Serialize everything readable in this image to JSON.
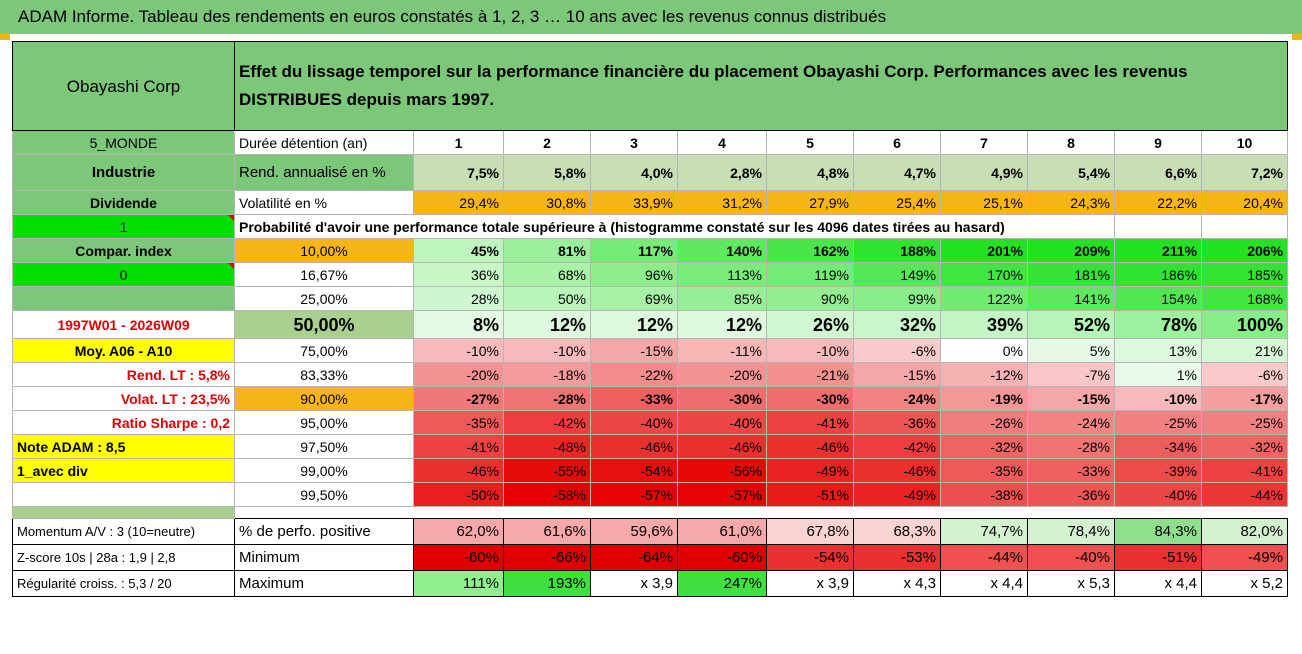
{
  "title": "ADAM Informe. Tableau des rendements en euros constatés à 1, 2, 3 … 10 ans avec les revenus connus distribués",
  "company": "Obayashi Corp",
  "header_text": "Effet du lissage temporel sur la performance financière du placement Obayashi Corp. Performances avec les revenus DISTRIBUES depuis mars 1997.",
  "left": {
    "zone": "5_MONDE",
    "sector": "Industrie",
    "dividend_label": "Dividende",
    "dividend_value": "1",
    "compar_index": "Compar. index",
    "compar_value": "0",
    "period": "1997W01 - 2026W09",
    "moy": "Moy. A06 - A10",
    "rend_lt": "Rend. LT :   5,8%",
    "volat_lt": "Volat. LT :   23,5%",
    "sharpe": "Ratio Sharpe :    0,2",
    "note": "Note ADAM : 8,5",
    "avec_div": "1_avec div",
    "momentum": "Momentum A/V : 3 (10=neutre)",
    "zscore": "Z-score 10s | 28a : 1,9 | 2,8",
    "regularite": "Régularité croiss. : 5,3 / 20"
  },
  "years": [
    "1",
    "2",
    "3",
    "4",
    "5",
    "6",
    "7",
    "8",
    "9",
    "10"
  ],
  "row_labels": {
    "duree": "Durée détention (an)",
    "rend": "Rend. annualisé en %",
    "vol": "Volatilité en %",
    "prob": "Probabilité d'avoir une performance totale supérieure à (histogramme constaté sur les 4096 dates tirées au hasard)",
    "pos": "% de perfo. positive",
    "min": "Minimum",
    "max": "Maximum"
  },
  "rend": [
    "7,5%",
    "5,8%",
    "4,0%",
    "2,8%",
    "4,8%",
    "4,7%",
    "4,9%",
    "5,4%",
    "6,6%",
    "7,2%"
  ],
  "vol": [
    "29,4%",
    "30,8%",
    "33,9%",
    "31,2%",
    "27,9%",
    "25,4%",
    "25,1%",
    "24,3%",
    "22,2%",
    "20,4%"
  ],
  "percentiles": [
    {
      "p": "10,00%",
      "v": [
        "45%",
        "81%",
        "117%",
        "140%",
        "162%",
        "188%",
        "201%",
        "209%",
        "211%",
        "206%"
      ]
    },
    {
      "p": "16,67%",
      "v": [
        "36%",
        "68%",
        "96%",
        "113%",
        "119%",
        "149%",
        "170%",
        "181%",
        "186%",
        "185%"
      ]
    },
    {
      "p": "25,00%",
      "v": [
        "28%",
        "50%",
        "69%",
        "85%",
        "90%",
        "99%",
        "122%",
        "141%",
        "154%",
        "168%"
      ]
    },
    {
      "p": "50,00%",
      "v": [
        "8%",
        "12%",
        "12%",
        "12%",
        "26%",
        "32%",
        "39%",
        "52%",
        "78%",
        "100%"
      ]
    },
    {
      "p": "75,00%",
      "v": [
        "-10%",
        "-10%",
        "-15%",
        "-11%",
        "-10%",
        "-6%",
        "0%",
        "5%",
        "13%",
        "21%"
      ]
    },
    {
      "p": "83,33%",
      "v": [
        "-20%",
        "-18%",
        "-22%",
        "-20%",
        "-21%",
        "-15%",
        "-12%",
        "-7%",
        "1%",
        "-6%"
      ]
    },
    {
      "p": "90,00%",
      "v": [
        "-27%",
        "-28%",
        "-33%",
        "-30%",
        "-30%",
        "-24%",
        "-19%",
        "-15%",
        "-10%",
        "-17%"
      ]
    },
    {
      "p": "95,00%",
      "v": [
        "-35%",
        "-42%",
        "-40%",
        "-40%",
        "-41%",
        "-36%",
        "-26%",
        "-24%",
        "-25%",
        "-25%"
      ]
    },
    {
      "p": "97,50%",
      "v": [
        "-41%",
        "-48%",
        "-46%",
        "-46%",
        "-46%",
        "-42%",
        "-32%",
        "-28%",
        "-34%",
        "-32%"
      ]
    },
    {
      "p": "99,00%",
      "v": [
        "-46%",
        "-55%",
        "-54%",
        "-56%",
        "-49%",
        "-46%",
        "-35%",
        "-33%",
        "-39%",
        "-41%"
      ]
    },
    {
      "p": "99,50%",
      "v": [
        "-50%",
        "-58%",
        "-57%",
        "-57%",
        "-51%",
        "-49%",
        "-38%",
        "-36%",
        "-40%",
        "-44%"
      ]
    }
  ],
  "pos": [
    "62,0%",
    "61,6%",
    "59,6%",
    "61,0%",
    "67,8%",
    "68,3%",
    "74,7%",
    "78,4%",
    "84,3%",
    "82,0%"
  ],
  "min": [
    "-60%",
    "-66%",
    "-64%",
    "-60%",
    "-54%",
    "-53%",
    "-44%",
    "-40%",
    "-51%",
    "-49%"
  ],
  "max": [
    "111%",
    "193%",
    "x 3,9",
    "247%",
    "x 3,9",
    "x 4,3",
    "x 4,4",
    "x 5,3",
    "x 4,4",
    "x 5,2"
  ],
  "colors": {
    "header_green": "#7cc77a",
    "orange": "#f7b516",
    "yellow": "#ffff00",
    "bright_green": "#00e000",
    "red_text": "#e00000"
  }
}
